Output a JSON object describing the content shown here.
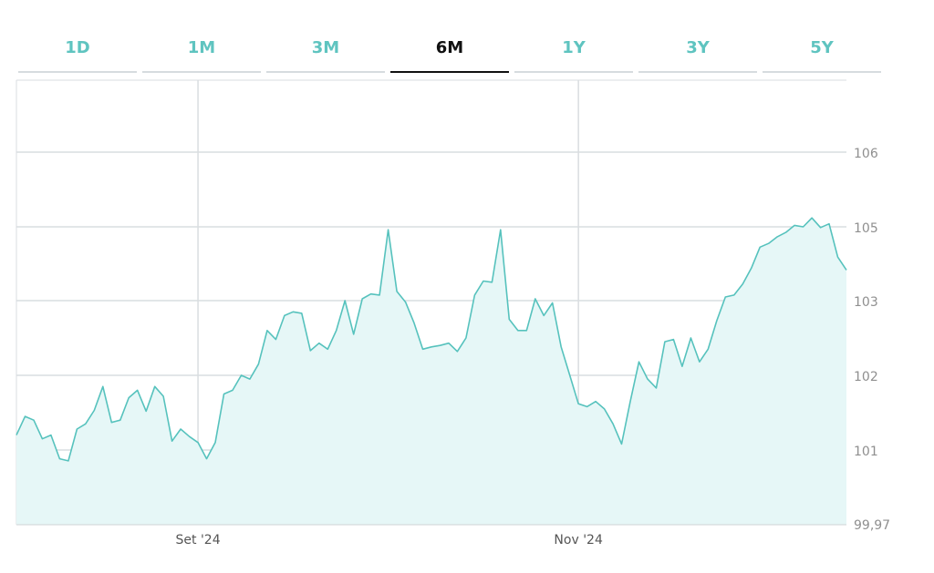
{
  "tabs": [
    {
      "label": "1D",
      "active": false
    },
    {
      "label": "1M",
      "active": false
    },
    {
      "label": "3M",
      "active": false
    },
    {
      "label": "6M",
      "active": true
    },
    {
      "label": "1Y",
      "active": false
    },
    {
      "label": "3Y",
      "active": false
    },
    {
      "label": "5Y",
      "active": false
    }
  ],
  "colors": {
    "line": "#56c2bd",
    "area": "#e6f7f7",
    "grid": "#d9dde0",
    "active_tab": "#111111",
    "tab": "#5fc4c0"
  },
  "chart_data": {
    "type": "area",
    "title": "",
    "xlabel": "",
    "ylabel": "",
    "y_ticks": [
      {
        "value": 99.97,
        "label": "99,97"
      },
      {
        "value": 101,
        "label": "101"
      },
      {
        "value": 102,
        "label": "102"
      },
      {
        "value": 103,
        "label": "103"
      },
      {
        "value": 105,
        "label": "105"
      },
      {
        "value": 106,
        "label": "106"
      }
    ],
    "x_ticks": [
      {
        "index": 21,
        "label": "Set '24"
      },
      {
        "index": 65,
        "label": "Nov '24"
      }
    ],
    "grid": true,
    "series": [
      {
        "values": [
          101.2,
          101.45,
          101.4,
          101.15,
          101.2,
          100.88,
          100.85,
          101.28,
          101.35,
          101.53,
          101.85,
          101.37,
          101.4,
          101.7,
          101.8,
          101.52,
          101.85,
          101.72,
          101.12,
          101.28,
          101.18,
          101.1,
          100.88,
          101.1,
          101.75,
          101.8,
          102.0,
          101.95,
          102.15,
          102.6,
          102.48,
          102.8,
          102.85,
          102.83,
          102.33,
          102.43,
          102.35,
          102.6,
          103.0,
          102.55,
          103.05,
          103.18,
          103.15,
          104.92,
          103.25,
          102.98,
          102.7,
          102.35,
          102.38,
          102.4,
          102.43,
          102.32,
          102.5,
          103.15,
          103.53,
          103.5,
          104.92,
          102.75,
          102.6,
          102.6,
          103.05,
          102.8,
          102.97,
          102.38,
          102.0,
          101.62,
          101.58,
          101.65,
          101.55,
          101.35,
          101.08,
          101.65,
          102.18,
          101.95,
          101.83,
          102.45,
          102.48,
          102.12,
          102.5,
          102.18,
          102.35,
          102.73,
          103.1,
          103.15,
          103.45,
          103.88,
          104.45,
          104.55,
          104.73,
          104.85,
          105.02,
          105.0,
          105.12,
          104.98,
          105.04,
          104.18,
          103.83
        ]
      }
    ]
  }
}
